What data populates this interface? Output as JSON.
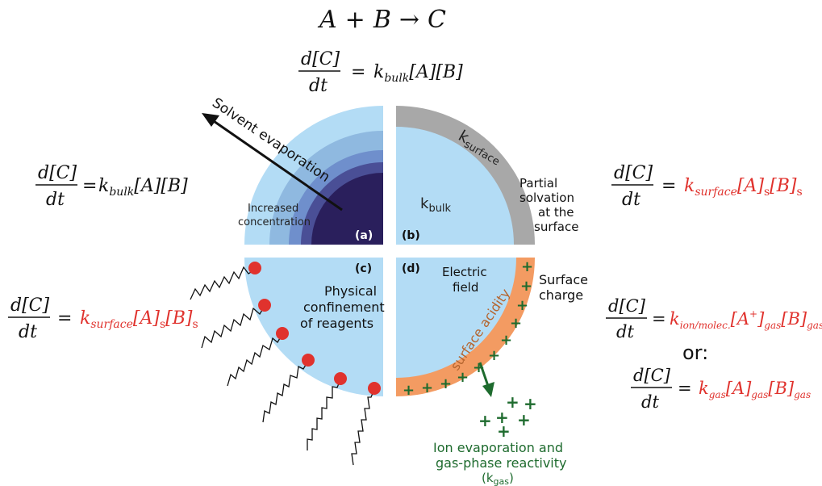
{
  "title_equation": {
    "a": "A",
    "plus": "+",
    "b": "B",
    "arrow": "→",
    "c": "C"
  },
  "top_rate": {
    "num": "d[C]",
    "den": "dt",
    "eq": "=",
    "rhs": "k",
    "sub": "bulk",
    "tail": "[A][B]"
  },
  "left_rate": {
    "num": "d[C]",
    "den": "dt",
    "eq": "=",
    "rhs": "k",
    "sub": "bulk",
    "tail": "[A][B]"
  },
  "surface_rate_right": {
    "num": "d[C]",
    "den": "dt",
    "eq": "=",
    "k": "k",
    "ksub": "surface",
    "a": "[A]",
    "asub": "s",
    "b": "[B]",
    "bsub": "s"
  },
  "surface_rate_left": {
    "num": "d[C]",
    "den": "dt",
    "eq": "=",
    "k": "k",
    "ksub": "surface",
    "a": "[A]",
    "asub": "s",
    "b": "[B]",
    "bsub": "s"
  },
  "ion_rate": {
    "num": "d[C]",
    "den": "dt",
    "eq": "=",
    "k": "k",
    "ksub": "ion/molec.",
    "a": "[A",
    "asup": "+",
    "aclose": "]",
    "asub": "gas",
    "b": "[B]",
    "bsub": "gas"
  },
  "or_label": "or:",
  "gas_rate": {
    "num": "d[C]",
    "den": "dt",
    "eq": "=",
    "k": "k",
    "ksub": "gas",
    "a": "[A]",
    "asub": "gas",
    "b": "[B]",
    "bsub": "gas"
  },
  "panel_a": {
    "tag": "(a)",
    "arrow_label": "Solvent evaporation",
    "line1": "Increased",
    "line2": "concentration"
  },
  "panel_b": {
    "tag": "(b)",
    "k_surface": "k",
    "k_surface_sub": "surface",
    "k_bulk": "k",
    "k_bulk_sub": "bulk",
    "line1": "Partial",
    "line2": "solvation",
    "line3": "at the",
    "line4": "surface"
  },
  "panel_c": {
    "tag": "(c)",
    "line1": "Physical",
    "line2": "confinement",
    "line3": "of reagents"
  },
  "panel_d": {
    "tag": "(d)",
    "field1": "Electric",
    "field2": "field",
    "charge1": "Surface",
    "charge2": "charge",
    "acidity": "surface acidity",
    "plus": "+",
    "ion1": "Ion evaporation and",
    "ion2": "gas-phase reactivity",
    "kgas": "(k",
    "kgas_sub": "gas",
    "kgas_close": ")"
  },
  "colors": {
    "light_blue": "#b3dcf5",
    "ring2": "#8fb9e0",
    "ring3": "#6f8fcc",
    "ring4": "#4a4f96",
    "core": "#2a1f5c",
    "gray": "#a8a8a8",
    "orange": "#f39b62",
    "red": "#e0322d",
    "green": "#1e6b2e",
    "black": "#111111"
  }
}
